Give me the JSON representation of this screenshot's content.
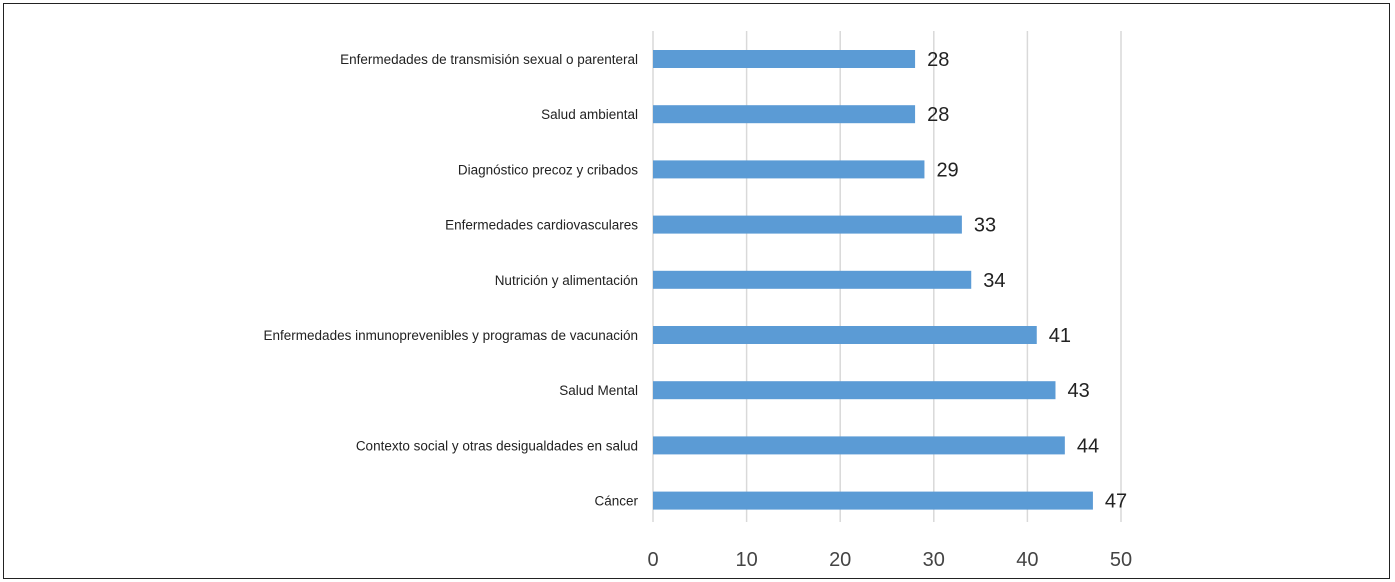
{
  "chart_data": {
    "type": "bar",
    "orientation": "horizontal",
    "title": "",
    "xlabel": "",
    "ylabel": "",
    "categories": [
      "Enfermedades de transmisión sexual o parenteral",
      "Salud ambiental",
      "Diagnóstico precoz y cribados",
      "Enfermedades cardiovasculares",
      "Nutrición y alimentación",
      "Enfermedades inmunoprevenibles y programas de vacunación",
      "Salud Mental",
      "Contexto social y otras desigualdades en salud",
      "Cáncer"
    ],
    "values": [
      28,
      28,
      29,
      33,
      34,
      41,
      43,
      44,
      47
    ],
    "xlim": [
      0,
      50
    ],
    "xticks": [
      0,
      10,
      20,
      30,
      40,
      50
    ],
    "grid": "vertical",
    "legend": "none",
    "data_labels": true,
    "bar_color": "#5b9bd5",
    "grid_color": "#d9d9d9"
  }
}
